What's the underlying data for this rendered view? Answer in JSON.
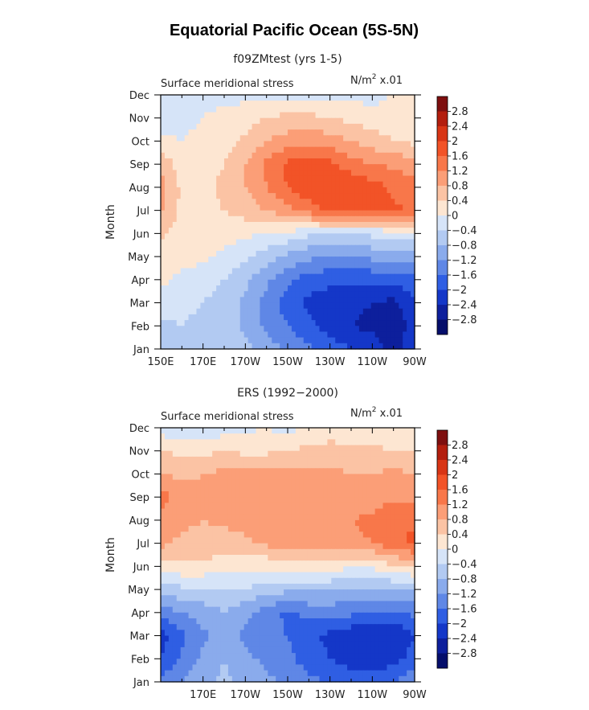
{
  "title": "Equatorial Pacific Ocean (5S-5N)",
  "colorbar": {
    "labels": [
      "2.8",
      "2.4",
      "2",
      "1.6",
      "1.2",
      "0.8",
      "0.4",
      "0",
      "−0.4",
      "−0.8",
      "−1.2",
      "−1.6",
      "−2",
      "−2.4",
      "−2.8"
    ],
    "colors": [
      "#7e0f0f",
      "#b31e0e",
      "#d83515",
      "#f25327",
      "#f8774a",
      "#fb9e77",
      "#fbc3a4",
      "#fde6d2",
      "#d6e4f8",
      "#b2caf2",
      "#8aabec",
      "#5f87e6",
      "#2f5ee3",
      "#1437c8",
      "#0d1f9c",
      "#050e6b"
    ]
  },
  "chart_data": [
    {
      "type": "heatmap",
      "subtitle": "f09ZMtest (yrs 1-5)",
      "variable": "Surface meridional stress",
      "units_label": "N/m",
      "units_sup": "2",
      "units_scale": " x.01",
      "ylabel": "Month",
      "y_ticks": [
        "Jan",
        "Feb",
        "Mar",
        "Apr",
        "May",
        "Jun",
        "Jul",
        "Aug",
        "Sep",
        "Oct",
        "Nov",
        "Dec"
      ],
      "x_ticks": [
        "150E",
        "170E",
        "170W",
        "150W",
        "130W",
        "110W",
        "90W"
      ],
      "x_values": [
        150,
        170,
        190,
        210,
        230,
        250,
        270
      ],
      "xlim": [
        150,
        270
      ],
      "months": [
        1,
        2,
        3,
        4,
        5,
        6,
        7,
        8,
        9,
        10,
        11,
        12
      ],
      "lon": [
        150,
        160,
        170,
        180,
        190,
        200,
        210,
        220,
        230,
        240,
        250,
        260,
        270
      ],
      "values": [
        [
          -0.5,
          -0.6,
          -0.5,
          -0.5,
          -0.7,
          -1.0,
          -1.3,
          -1.5,
          -1.8,
          -2.0,
          -2.2,
          -2.6,
          -2.1
        ],
        [
          -0.5,
          -0.4,
          -0.5,
          -0.6,
          -0.9,
          -1.3,
          -1.6,
          -1.9,
          -2.2,
          -2.4,
          -2.5,
          -2.7,
          -2.2
        ],
        [
          -0.2,
          -0.3,
          -0.4,
          -0.6,
          -0.9,
          -1.4,
          -1.8,
          -2.1,
          -2.2,
          -2.3,
          -2.4,
          -2.5,
          -2.1
        ],
        [
          0.1,
          -0.1,
          -0.2,
          -0.4,
          -0.7,
          -1.1,
          -1.5,
          -1.8,
          -1.9,
          -1.9,
          -1.9,
          -1.9,
          -1.7
        ],
        [
          0.2,
          0.1,
          0.1,
          -0.1,
          -0.3,
          -0.6,
          -0.9,
          -1.1,
          -1.2,
          -1.2,
          -1.1,
          -1.0,
          -1.0
        ],
        [
          0.5,
          0.2,
          0.2,
          0.2,
          0.1,
          0.0,
          -0.1,
          -0.3,
          -0.3,
          -0.3,
          -0.3,
          -0.2,
          -0.1
        ],
        [
          0.9,
          0.3,
          0.3,
          0.4,
          0.6,
          0.8,
          1.1,
          1.4,
          1.7,
          1.8,
          1.8,
          1.7,
          1.5
        ],
        [
          1.0,
          0.3,
          0.3,
          0.5,
          0.8,
          1.2,
          1.6,
          1.9,
          2.0,
          1.9,
          1.8,
          1.5,
          1.3
        ],
        [
          0.7,
          0.2,
          0.2,
          0.4,
          0.8,
          1.3,
          1.7,
          1.8,
          1.7,
          1.4,
          1.2,
          1.1,
          1.0
        ],
        [
          0.1,
          0.0,
          0.1,
          0.2,
          0.5,
          0.8,
          1.0,
          1.1,
          1.0,
          0.8,
          0.6,
          0.4,
          0.3
        ],
        [
          -0.2,
          -0.1,
          0.0,
          0.1,
          0.2,
          0.4,
          0.5,
          0.5,
          0.4,
          0.3,
          0.2,
          0.1,
          0.1
        ],
        [
          -0.3,
          -0.2,
          -0.1,
          -0.1,
          -0.1,
          -0.1,
          -0.1,
          -0.1,
          -0.1,
          -0.1,
          -0.2,
          0.1,
          0.2
        ]
      ]
    },
    {
      "type": "heatmap",
      "subtitle": "ERS (1992−2000)",
      "variable": "Surface meridional stress",
      "units_label": "N/m",
      "units_sup": "2",
      "units_scale": " x.01",
      "ylabel": "Month",
      "y_ticks": [
        "Jan",
        "Feb",
        "Mar",
        "Apr",
        "May",
        "Jun",
        "Jul",
        "Aug",
        "Sep",
        "Oct",
        "Nov",
        "Dec"
      ],
      "x_ticks": [
        "170E",
        "170W",
        "150W",
        "130W",
        "110W",
        "90W"
      ],
      "x_values": [
        170,
        190,
        210,
        230,
        250,
        270
      ],
      "xlim": [
        150,
        270
      ],
      "months": [
        1,
        2,
        3,
        4,
        5,
        6,
        7,
        8,
        9,
        10,
        11,
        12
      ],
      "lon": [
        150,
        160,
        170,
        180,
        190,
        200,
        210,
        220,
        230,
        240,
        250,
        260,
        270
      ],
      "values": [
        [
          -1.5,
          -1.2,
          -0.9,
          -0.7,
          -0.9,
          -1.1,
          -1.3,
          -1.5,
          -1.6,
          -1.8,
          -1.7,
          -1.6,
          -1.2
        ],
        [
          -2.0,
          -1.5,
          -1.1,
          -0.8,
          -1.1,
          -1.3,
          -1.5,
          -1.8,
          -2.0,
          -2.2,
          -2.3,
          -2.2,
          -1.8
        ],
        [
          -2.2,
          -1.7,
          -1.3,
          -1.0,
          -1.3,
          -1.5,
          -1.6,
          -1.9,
          -2.1,
          -2.3,
          -2.4,
          -2.4,
          -2.0
        ],
        [
          -1.4,
          -1.2,
          -1.0,
          -0.8,
          -1.1,
          -1.4,
          -1.7,
          -1.5,
          -1.4,
          -1.5,
          -1.7,
          -1.7,
          -1.5
        ],
        [
          -0.6,
          -0.5,
          -0.5,
          -0.4,
          -0.4,
          -0.6,
          -0.7,
          -0.7,
          -0.8,
          -0.9,
          -0.9,
          -0.8,
          -0.8
        ],
        [
          0.3,
          0.3,
          0.3,
          0.2,
          0.2,
          0.1,
          0.1,
          0.2,
          0.3,
          0.0,
          0.1,
          0.3,
          0.5
        ],
        [
          0.9,
          0.7,
          0.7,
          0.6,
          0.7,
          0.9,
          1.0,
          1.0,
          1.0,
          1.1,
          1.2,
          1.5,
          1.7
        ],
        [
          1.1,
          0.9,
          0.8,
          0.9,
          1.0,
          1.1,
          1.2,
          1.2,
          1.2,
          1.2,
          1.3,
          1.6,
          1.5
        ],
        [
          1.4,
          1.0,
          0.9,
          1.0,
          1.1,
          1.1,
          1.2,
          1.1,
          1.2,
          1.0,
          1.0,
          1.1,
          1.1
        ],
        [
          0.8,
          0.7,
          0.8,
          0.9,
          0.9,
          1.0,
          1.0,
          0.9,
          0.9,
          0.8,
          0.8,
          0.9,
          0.8
        ],
        [
          0.4,
          0.3,
          0.3,
          0.4,
          0.3,
          0.3,
          0.4,
          0.5,
          0.6,
          0.5,
          0.5,
          0.4,
          0.4
        ],
        [
          -0.2,
          -0.3,
          -0.3,
          -0.2,
          -0.1,
          0.0,
          -0.2,
          0.1,
          0.1,
          0.1,
          0.0,
          0.0,
          0.0
        ]
      ]
    }
  ]
}
